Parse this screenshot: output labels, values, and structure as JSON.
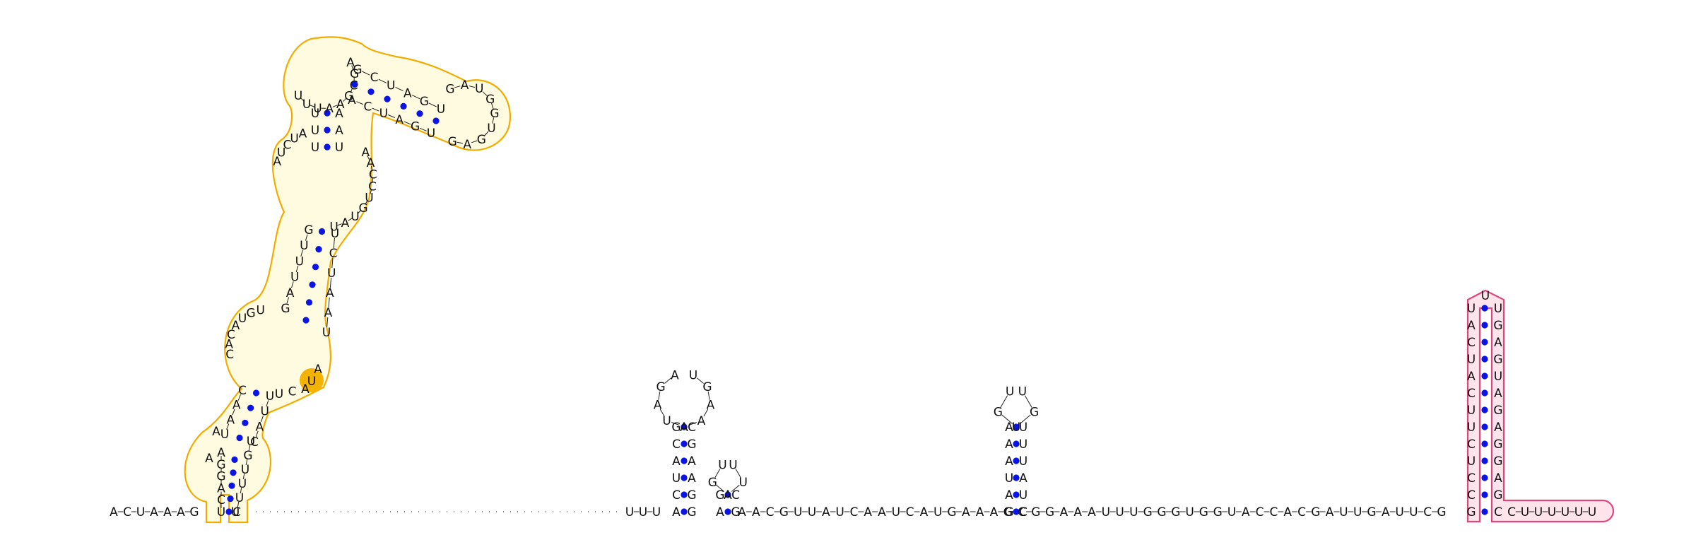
{
  "colors": {
    "basepair": "#0a14e6",
    "highlight_yellow": "#f1ac00",
    "highlight_pink": "#e0467e"
  },
  "sequence": {
    "five_prime": "ACUAAAG",
    "gap_start": "U",
    "gap_end": "UUU",
    "tail": "AACGUUAUCAAUCAUGAAAGCGGAAAUUUGGGUGGUACCACGAUUGAUUCG",
    "three_prime": "CUUUUUU"
  },
  "domain1": {
    "stem1": {
      "left": "UCAGGA",
      "right": "CUUUGU"
    },
    "bulge_left": "AA",
    "stem2": {
      "left": "UAAC",
      "right": "CAUU"
    },
    "loop2_right": "UCA",
    "loop2_left": "CACAUGU",
    "stem3": {
      "left": "GAUUUG",
      "right": "UAAUCU"
    },
    "loop3_right": "UAUGUCCAA",
    "loop3_left": "AUCUA",
    "stem4": {
      "left": "UUU",
      "right": "AAU"
    },
    "loop4_left": "UUUAAGCGA",
    "stem5": {
      "left": "GCUAGU",
      "right": "ACUAGU"
    },
    "loop5": "GAUGGUGAG"
  },
  "hairpin_a": {
    "stem": [
      "AG",
      "CG",
      "UA",
      "AA",
      "CG",
      "GC"
    ],
    "loop": "AGAUAAAGU"
  },
  "hairpin_b": {
    "stem": [
      "AG",
      "GC"
    ],
    "loop": "UGAUU"
  },
  "hairpin_c": {
    "stem": [
      "GC",
      "AU",
      "UA",
      "AU",
      "AU",
      "AU"
    ],
    "loop": "UGUGU"
  },
  "hairpin_d": {
    "stem": [
      "GC",
      "CG",
      "CA",
      "UG",
      "CG",
      "UA",
      "UG",
      "CA",
      "AU",
      "UG",
      "CA",
      "AG",
      "UU"
    ],
    "loop": "U"
  }
}
